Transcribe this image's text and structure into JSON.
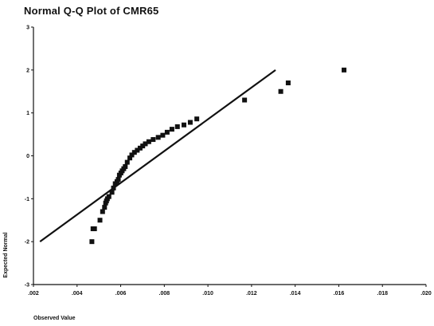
{
  "chart_data": {
    "type": "scatter",
    "title": "Normal Q-Q Plot of CMR65",
    "xlabel": "Observed Value",
    "ylabel": "Expected Normal",
    "xlim": [
      0.002,
      0.02
    ],
    "ylim": [
      -3,
      3
    ],
    "x_ticks": [
      0.002,
      0.004,
      0.006,
      0.008,
      0.01,
      0.012,
      0.014,
      0.016,
      0.018,
      0.02
    ],
    "x_tick_labels": [
      ".002",
      ".004",
      ".006",
      ".008",
      ".010",
      ".012",
      ".014",
      ".016",
      ".018",
      ".020"
    ],
    "y_ticks": [
      -3,
      -2,
      -1,
      0,
      1,
      2,
      3
    ],
    "y_tick_labels": [
      "-3",
      "-2",
      "-1",
      "0",
      "1",
      "2",
      "3"
    ],
    "grid": false,
    "legend": "none",
    "reference_line": {
      "x": [
        0.0023,
        0.0131
      ],
      "y": [
        -2.0,
        2.0
      ]
    },
    "series": [
      {
        "x": [
          0.00468,
          0.00473,
          0.0048,
          0.00505,
          0.00517,
          0.00526,
          0.00531,
          0.00535,
          0.00539,
          0.00546,
          0.0056,
          0.00567,
          0.00575,
          0.00583,
          0.00589,
          0.00594,
          0.00601,
          0.00607,
          0.00614,
          0.00621,
          0.0063,
          0.00642,
          0.00651,
          0.00663,
          0.00676,
          0.00689,
          0.00701,
          0.00713,
          0.00729,
          0.00749,
          0.00772,
          0.00793,
          0.00813,
          0.00835,
          0.0086,
          0.0089,
          0.00919,
          0.00949,
          0.01168,
          0.01334,
          0.01368,
          0.01624
        ],
        "y": [
          -2.0,
          -1.7,
          -1.7,
          -1.5,
          -1.3,
          -1.2,
          -1.1,
          -1.05,
          -1.0,
          -0.95,
          -0.85,
          -0.75,
          -0.65,
          -0.6,
          -0.55,
          -0.45,
          -0.4,
          -0.35,
          -0.3,
          -0.25,
          -0.15,
          -0.05,
          0.02,
          0.08,
          0.13,
          0.18,
          0.23,
          0.28,
          0.33,
          0.38,
          0.43,
          0.48,
          0.55,
          0.62,
          0.68,
          0.72,
          0.78,
          0.86,
          1.3,
          1.5,
          1.7,
          2.0
        ]
      }
    ]
  }
}
